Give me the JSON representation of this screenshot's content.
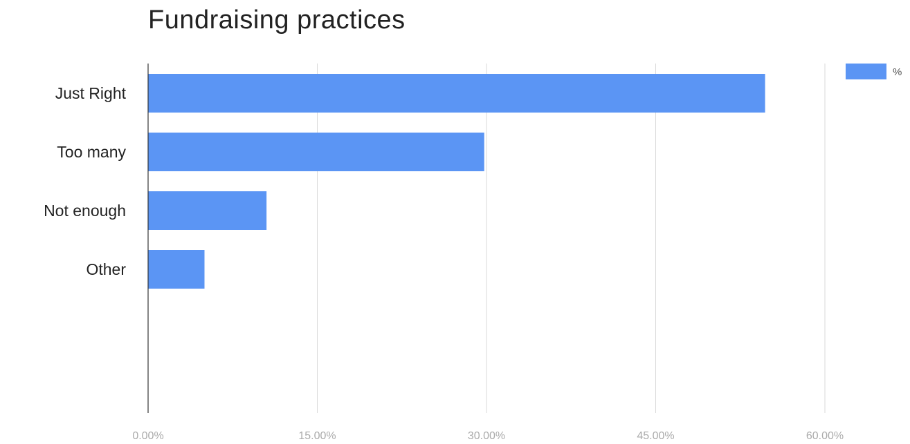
{
  "chart_data": {
    "type": "bar",
    "orientation": "horizontal",
    "title": "Fundraising practices",
    "categories": [
      "Just Right",
      "Too many",
      "Not enough",
      "Other"
    ],
    "series": [
      {
        "name": "%",
        "values": [
          54.7,
          29.8,
          10.5,
          5.0
        ],
        "color": "#5b95f4"
      }
    ],
    "xlim": [
      0,
      60
    ],
    "x_ticks": [
      0,
      15,
      30,
      45,
      60
    ],
    "x_tick_labels": [
      "0.00%",
      "15.00%",
      "30.00%",
      "45.00%",
      "60.00%"
    ],
    "xlabel": "",
    "ylabel": "",
    "grid": true,
    "legend_position": "top-right",
    "colors": {
      "bar": "#5b95f4",
      "grid": "#d9d9d9",
      "axis": "#333333",
      "category_label": "#222222",
      "tick_label": "#aaaaaa"
    }
  }
}
